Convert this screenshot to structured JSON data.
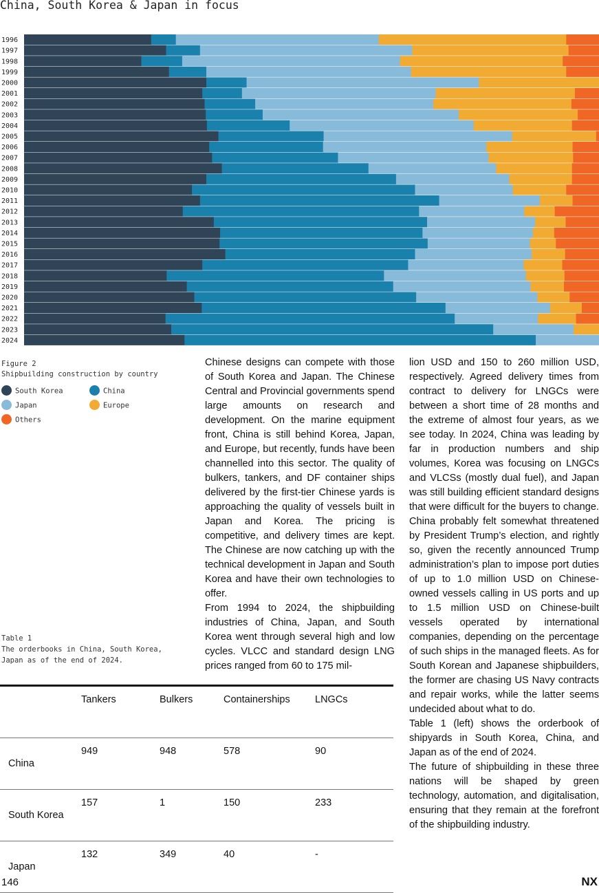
{
  "page": {
    "title": "China, South Korea & Japan in focus",
    "page_number": "146",
    "brand": "NX"
  },
  "figure": {
    "caption_line1": "Figure 2",
    "caption_line2": "Shipbuilding construction by country"
  },
  "legend": [
    {
      "label": "South Korea",
      "color": "#2f4457"
    },
    {
      "label": "China",
      "color": "#1a81ad"
    },
    {
      "label": "Japan",
      "color": "#88bbd9"
    },
    {
      "label": "Europe",
      "color": "#f2ab32"
    },
    {
      "label": "Others",
      "color": "#ef6625"
    }
  ],
  "chart_data": {
    "type": "bar",
    "orientation": "horizontal",
    "stacked": true,
    "normalized": "percent",
    "categories": [
      "1996",
      "1997",
      "1998",
      "1999",
      "2000",
      "2001",
      "2002",
      "2003",
      "2004",
      "2005",
      "2006",
      "2007",
      "2008",
      "2009",
      "2010",
      "2011",
      "2012",
      "2013",
      "2014",
      "2015",
      "2016",
      "2017",
      "2018",
      "2019",
      "2020",
      "2021",
      "2022",
      "2023",
      "2024"
    ],
    "series": [
      {
        "name": "South Korea",
        "color": "#2f4457",
        "values": [
          22.1,
          24.7,
          20.4,
          25.2,
          31.7,
          31.0,
          31.4,
          31.6,
          31.8,
          33.8,
          32.2,
          32.7,
          34.4,
          31.7,
          29.2,
          30.6,
          27.6,
          33.0,
          34.1,
          34.0,
          35.0,
          31.0,
          24.8,
          28.3,
          29.6,
          30.9,
          24.6,
          25.6,
          27.9
        ]
      },
      {
        "name": "China",
        "color": "#1a81ad",
        "values": [
          4.3,
          5.9,
          7.1,
          6.5,
          7.0,
          6.9,
          8.8,
          9.9,
          14.4,
          18.3,
          19.8,
          21.9,
          25.5,
          33.0,
          38.8,
          41.6,
          41.1,
          37.1,
          35.2,
          36.2,
          33.0,
          35.8,
          37.8,
          35.9,
          38.6,
          42.4,
          50.3,
          56.0,
          61.1
        ]
      },
      {
        "name": "Japan",
        "color": "#88bbd9",
        "values": [
          35.3,
          36.9,
          37.9,
          35.6,
          40.4,
          33.7,
          31.0,
          34.1,
          32.0,
          32.8,
          28.4,
          26.2,
          22.2,
          19.7,
          17.0,
          17.5,
          18.3,
          18.8,
          19.2,
          17.8,
          20.3,
          20.1,
          24.7,
          23.9,
          21.1,
          18.2,
          14.5,
          14.0,
          12.1
        ]
      },
      {
        "name": "Europe",
        "color": "#f2ab32",
        "values": [
          32.6,
          27.2,
          28.3,
          27.0,
          23.0,
          24.2,
          24.0,
          20.7,
          17.1,
          14.6,
          15.0,
          14.7,
          13.2,
          10.9,
          9.3,
          5.7,
          5.3,
          5.3,
          3.7,
          4.5,
          5.8,
          6.7,
          6.7,
          5.8,
          5.6,
          5.5,
          6.6,
          5.6,
          4.0
        ]
      },
      {
        "name": "Others",
        "color": "#ef6625",
        "values": [
          5.7,
          5.3,
          6.3,
          5.7,
          4.9,
          4.2,
          4.8,
          3.7,
          4.7,
          5.2,
          4.6,
          4.5,
          4.7,
          4.7,
          5.7,
          4.6,
          7.7,
          5.8,
          7.8,
          7.5,
          5.9,
          6.4,
          6.0,
          6.1,
          5.1,
          3.0,
          4.0,
          3.8,
          4.9
        ]
      }
    ],
    "xlim": [
      0,
      100
    ],
    "grid": false,
    "legend_position": "below"
  },
  "table": {
    "caption_line1": "Table 1",
    "caption_line2": "The orderbooks in China, South Korea,",
    "caption_line3": "Japan as of the end of 2024.",
    "headers": [
      "",
      "Tankers",
      "Bulkers",
      "Containerships",
      "LNGCs"
    ],
    "rows": [
      [
        "China",
        "949",
        "948",
        "578",
        "90"
      ],
      [
        "South Korea",
        "157",
        "1",
        "150",
        "233"
      ],
      [
        "Japan",
        "132",
        "349",
        "40",
        "-"
      ]
    ]
  },
  "text": {
    "col1_p1": "Chinese designs can compete with those of South Korea and Japan. The Chinese Central and Provincial governments spend large amounts on research and development. On the marine equipment front, China is still behind Korea, Japan, and Europe, but recently, funds have been channelled into this sector. The quality of bulkers, tankers, and DF container ships delivered by the first-tier Chinese yards is approaching the quality of vessels built in Japan and Korea. The pricing is competitive, and delivery times are kept. The Chinese are now catching up with the technical development in Japan and South Korea and have their own technologies to offer.",
    "col1_p2": "From 1994 to 2024, the shipbuilding industries of China, Japan, and South Korea went through several high and low cycles. VLCC and standard design LNG prices ranged from 60 to 175 mil-",
    "col2_p1": "lion USD and 150 to 260 million USD, respectively. Agreed delivery times from contract to delivery for LNGCs were between a short time of 28 months and the extreme of almost four years, as we see today. In 2024, China was leading by far in production numbers and ship volumes, Korea was focusing on LNGCs and VLCSs (mostly dual fuel), and Japan was still building efficient standard designs that were difficult for the buyers to change. China probably felt somewhat threatened by President Trump’s election, and rightly so, given the recently announced Trump administration’s plan to impose port duties of up to 1.0 million USD on Chinese-owned vessels calling in US ports and up to 1.5 million USD on Chinese-built vessels operated by international companies, depending on the percentage of such ships in the managed fleets. As for South Korean and Japanese shipbuilders, the former are chasing US Navy contracts and repair works, while the latter seems undecided about what to do.",
    "col2_p2": "Table 1 (left) shows the orderbook of shipyards in South Korea, China, and Japan as of the end of 2024.",
    "col2_p3": "The future of shipbuilding in these three nations will be shaped by green technology, automation, and digitalisation, ensuring that they remain at the forefront of the shipbuilding industry."
  }
}
